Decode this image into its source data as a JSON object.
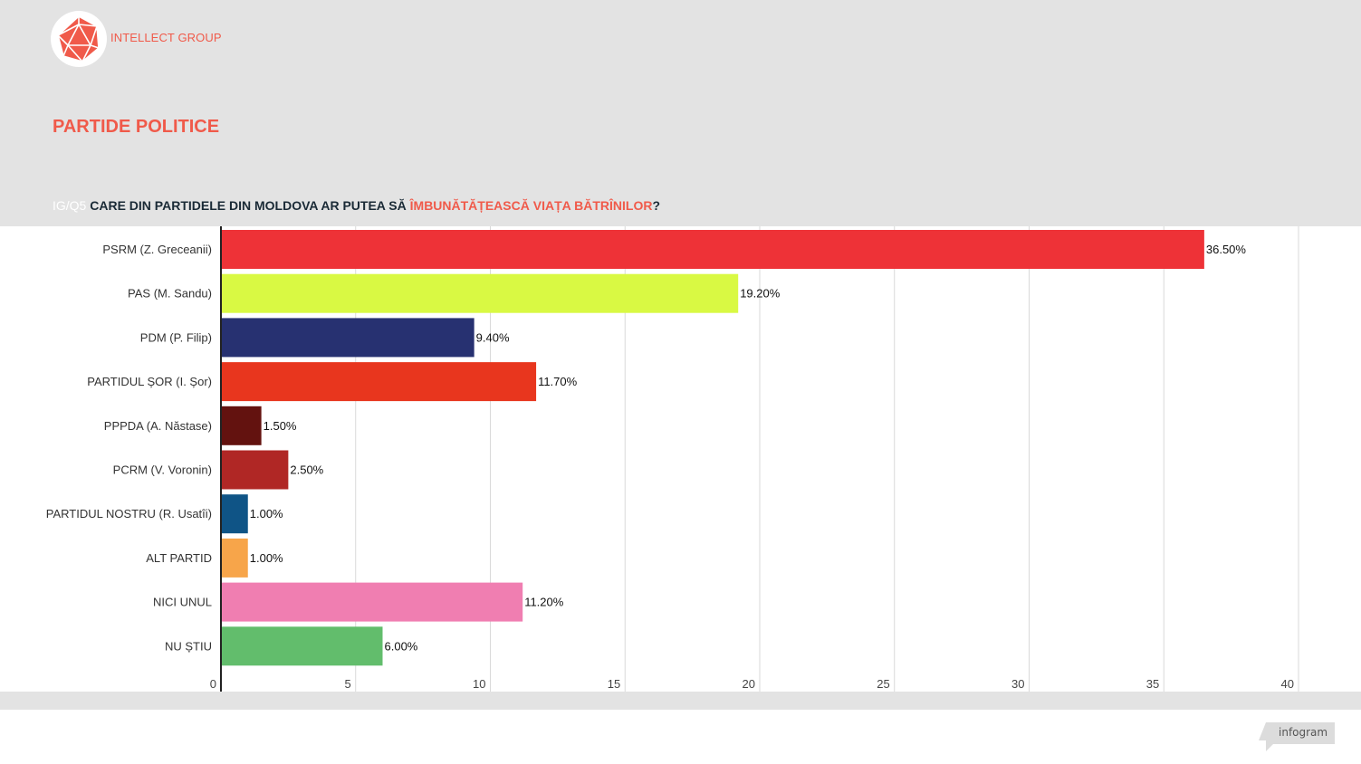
{
  "brand": {
    "name": "INTELLECT GROUP",
    "logo_icon": "icosahedron-logo-icon",
    "color": "#f05a4a"
  },
  "page": {
    "title": "PARTIDE POLITICE"
  },
  "question": {
    "code": "IG/Q5",
    "text_before": "CARE DIN PARTIDELE DIN  MOLDOVA AR PUTEA SĂ ",
    "highlight": "ÎMBUNĂTĂȚEASCĂ VIAȚA BĂTRÎNILOR",
    "text_after": "?"
  },
  "chart_data": {
    "type": "bar",
    "orientation": "horizontal",
    "categories": [
      "PSRM (Z. Greceanii)",
      "PAS (M. Sandu)",
      "PDM (P. Filip)",
      "PARTIDUL ȘOR (I. Șor)",
      "PPPDA (A. Năstase)",
      "PCRM (V. Voronin)",
      "PARTIDUL NOSTRU (R. Usatîi)",
      "ALT PARTID",
      "NICI UNUL",
      "NU ȘTIU"
    ],
    "values": [
      36.5,
      19.2,
      9.4,
      11.7,
      1.5,
      2.5,
      1.0,
      1.0,
      11.2,
      6.0
    ],
    "value_labels": [
      "36.50%",
      "19.20%",
      "9.40%",
      "11.70%",
      "1.50%",
      "2.50%",
      "1.00%",
      "1.00%",
      "11.20%",
      "6.00%"
    ],
    "colors": [
      "#ee3237",
      "#d9f943",
      "#273171",
      "#e8361e",
      "#63120f",
      "#b02725",
      "#0f5486",
      "#f7a54a",
      "#f07eb1",
      "#62bd6c"
    ],
    "xlim": [
      0,
      40
    ],
    "xticks": [
      "0",
      "5",
      "10",
      "15",
      "20",
      "25",
      "30",
      "35",
      "40"
    ],
    "grid": true,
    "legend": false
  },
  "footer": {
    "badge": "infogram"
  }
}
